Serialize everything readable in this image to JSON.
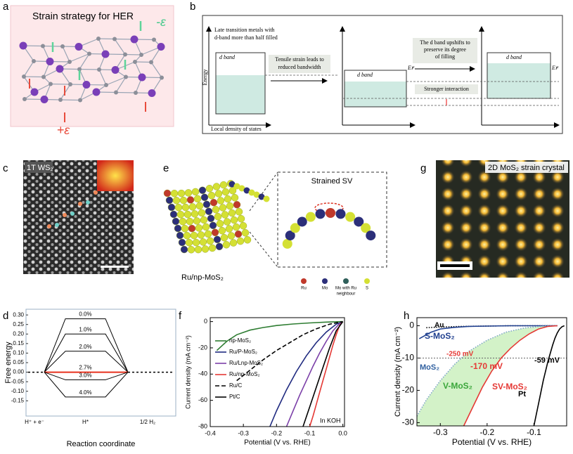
{
  "panels": {
    "a": {
      "label": "a",
      "title": "Strain strategy for HER",
      "compress": "-ε",
      "tensile": "+ε"
    },
    "b": {
      "label": "b",
      "metal_note": [
        "Late transition metals with",
        "d-band more than half filled"
      ],
      "dband": "d band",
      "ef": "Eꜰ",
      "tensile_note": [
        "Tensile strain leads to",
        "reduced bandwidth"
      ],
      "upshift_note": [
        "The d band upshifts to",
        "preserve its degree",
        "of filling"
      ],
      "interaction": "Stronger interaction",
      "y_label": "Energy",
      "x_label": "Local density of states"
    },
    "c": {
      "label": "c",
      "tag": "1T WS₂"
    },
    "e": {
      "label": "e",
      "material": "Ru/np-MoS₂",
      "inset_title": "Strained SV",
      "legend": [
        {
          "lines": [
            "Ru"
          ],
          "color": "#c0392b"
        },
        {
          "lines": [
            "Mo"
          ],
          "color": "#2c2f7a"
        },
        {
          "lines": [
            "Mo with Ru",
            "neighbour"
          ],
          "color": "#2f5f5a"
        },
        {
          "lines": [
            "S"
          ],
          "color": "#d4e034"
        }
      ]
    },
    "g": {
      "label": "g",
      "tag": "2D MoS₂ strain crystal"
    }
  },
  "chart_data": [
    {
      "panel": "d",
      "type": "levels",
      "ylabel": "Free energy",
      "xlabel": "Reaction coordinate",
      "stages": [
        "H⁺ + e⁻",
        "H*",
        "1/2 H₂"
      ],
      "reference": 0,
      "categories": [
        "0.0%",
        "1.0%",
        "2.0%",
        "2.7%",
        "3.0%",
        "4.0%"
      ],
      "values": [
        0.28,
        0.2,
        0.11,
        0,
        -0.04,
        -0.13
      ],
      "colors": [
        "#000000",
        "#000000",
        "#000000",
        "#e8321e",
        "#000000",
        "#000000"
      ],
      "ylim": [
        -0.23,
        0.33
      ],
      "yticks": [
        {
          "value": -0.15,
          "label": "-0.15"
        },
        {
          "value": -0.1,
          "label": "-0.10"
        },
        -0.05,
        {
          "value": 0,
          "label": "0.00"
        },
        0.05,
        {
          "value": 0.1,
          "label": "0.10"
        },
        0.15,
        {
          "value": 0.2,
          "label": "0.20"
        },
        0.25,
        {
          "value": 0.3,
          "label": "0.30"
        }
      ]
    },
    {
      "panel": "f",
      "type": "line",
      "xlabel": "Potential (V vs. RHE)",
      "ylabel": "Current density (mA cm⁻²)",
      "annotations": [
        "In KOH"
      ],
      "legend": "left",
      "xlim": [
        -0.4,
        0.005
      ],
      "xticks": [
        -0.4,
        -0.3,
        -0.2,
        -0.1,
        {
          "value": 0,
          "label": "0.0"
        }
      ],
      "ylim": [
        -80,
        3
      ],
      "yticks": [
        -80,
        -60,
        -40,
        -20,
        0
      ],
      "series": [
        {
          "name": "np-MoS₂",
          "color": "#2e7d32",
          "dash": "solid",
          "x": [
            -0.38,
            -0.35,
            -0.32,
            -0.28,
            -0.24,
            -0.2,
            -0.15,
            -0.1,
            -0.05,
            0
          ],
          "values": [
            -22,
            -15,
            -10,
            -6.5,
            -4.5,
            -3,
            -1.8,
            -1,
            -0.4,
            0
          ]
        },
        {
          "name": "Ru/P-MoS₂",
          "color": "#1f2a80",
          "dash": "solid",
          "x": [
            -0.22,
            -0.2,
            -0.17,
            -0.14,
            -0.11,
            -0.08,
            -0.05,
            -0.02,
            0
          ],
          "values": [
            -80,
            -68,
            -52,
            -38,
            -26,
            -16,
            -8,
            -2,
            0
          ]
        },
        {
          "name": "Ru/Lnp-MoS₂",
          "color": "#7b3fa8",
          "dash": "solid",
          "x": [
            -0.17,
            -0.15,
            -0.13,
            -0.11,
            -0.09,
            -0.07,
            -0.05,
            -0.03,
            -0.01,
            0
          ],
          "values": [
            -80,
            -68,
            -56,
            -45,
            -34,
            -24,
            -15,
            -7,
            -1.5,
            0
          ]
        },
        {
          "name": "Ru/np-MoS₂",
          "color": "#e53935",
          "dash": "solid",
          "x": [
            -0.1,
            -0.09,
            -0.08,
            -0.07,
            -0.06,
            -0.05,
            -0.04,
            -0.03,
            -0.02,
            -0.01,
            0
          ],
          "values": [
            -80,
            -72,
            -63,
            -54,
            -45,
            -36,
            -27,
            -18,
            -10,
            -3,
            0
          ]
        },
        {
          "name": "Ru/C",
          "color": "#000000",
          "dash": "dashed",
          "x": [
            -0.32,
            -0.28,
            -0.24,
            -0.2,
            -0.16,
            -0.12,
            -0.08,
            -0.04,
            0
          ],
          "values": [
            -45,
            -37,
            -29,
            -22,
            -16,
            -10,
            -5.5,
            -2,
            0
          ]
        },
        {
          "name": "Pt/C",
          "color": "#000000",
          "dash": "solid",
          "x": [
            -0.12,
            -0.1,
            -0.08,
            -0.06,
            -0.04,
            -0.02,
            0
          ],
          "values": [
            -80,
            -65,
            -50,
            -35,
            -20,
            -7,
            0
          ]
        }
      ]
    },
    {
      "panel": "h",
      "type": "line",
      "xlabel": "Potential (V vs. RHE)",
      "ylabel": "Current density (mA cm⁻²)",
      "annotations": [
        "V-MoS₂",
        "-250 mV",
        "-170 mV",
        "-59 mV"
      ],
      "legend": "inline",
      "xlim": [
        -0.35,
        -0.03
      ],
      "xticks": [
        -0.3,
        -0.2,
        -0.1
      ],
      "ylim": [
        -31,
        2.5
      ],
      "yticks": [
        -30,
        -20,
        -10,
        0
      ],
      "hline": -10,
      "fill_between": [
        2,
        3
      ],
      "fill_color": "#d3f2c8",
      "series": [
        {
          "name": "Au",
          "color": "#000000",
          "dash": "dotted",
          "x": [
            -0.33,
            -0.3,
            -0.25,
            -0.15,
            -0.05
          ],
          "values": [
            -0.6,
            -0.4,
            -0.2,
            0,
            0
          ]
        },
        {
          "name": "S-MoS₂",
          "color": "#1f3f8f",
          "dash": "solid",
          "x": [
            -0.345,
            -0.32,
            -0.3,
            -0.27,
            -0.24,
            -0.2,
            -0.15,
            -0.1,
            -0.05
          ],
          "values": [
            -4,
            -2,
            -1,
            -0.5,
            -0.2,
            -0.1,
            0,
            0,
            0
          ]
        },
        {
          "name": "MoS₂",
          "color": "#7fa6c8",
          "dash": "dotted",
          "x": [
            -0.35,
            -0.33,
            -0.3,
            -0.27,
            -0.24,
            -0.2,
            -0.16,
            -0.12,
            -0.08,
            -0.05
          ],
          "values": [
            -28,
            -23,
            -17,
            -12,
            -8,
            -4.5,
            -2,
            -0.7,
            -0.1,
            0
          ]
        },
        {
          "name": "SV-MoS₂",
          "color": "#e53935",
          "dash": "solid",
          "x": [
            -0.25,
            -0.23,
            -0.21,
            -0.19,
            -0.17,
            -0.15,
            -0.13,
            -0.11,
            -0.09,
            -0.07,
            -0.05
          ],
          "values": [
            -31,
            -25,
            -19,
            -14,
            -10,
            -7,
            -4.5,
            -2.5,
            -1,
            -0.2,
            0
          ]
        },
        {
          "name": "Pt",
          "color": "#000000",
          "dash": "solid",
          "x": [
            -0.1,
            -0.09,
            -0.08,
            -0.07,
            -0.06,
            -0.055,
            -0.05,
            -0.045,
            -0.04,
            -0.035
          ],
          "values": [
            -31,
            -24,
            -17,
            -11,
            -6,
            -3.8,
            -2.2,
            -1,
            -0.3,
            0
          ]
        }
      ]
    }
  ]
}
